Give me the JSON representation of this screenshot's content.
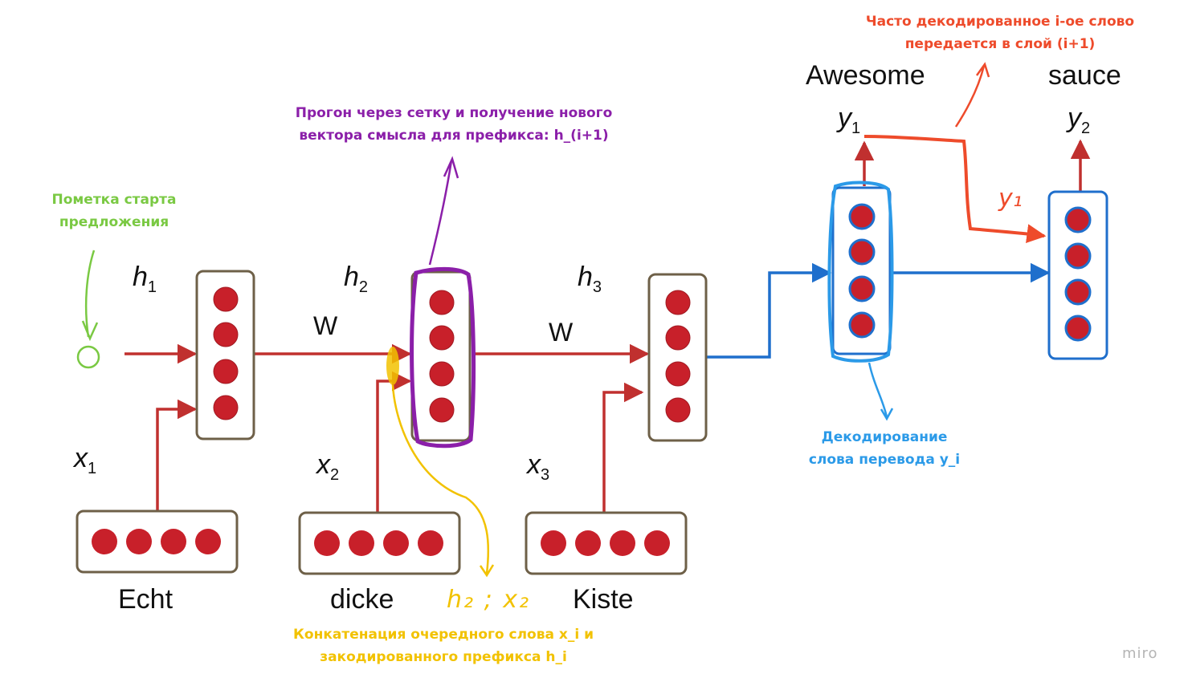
{
  "words": {
    "echt": "Echt",
    "dicke": "dicke",
    "kiste": "Kiste",
    "awesome": "Awesome",
    "sauce": "sauce"
  },
  "labels": {
    "h1": "h",
    "h1_sub": "1",
    "h2": "h",
    "h2_sub": "2",
    "h3": "h",
    "h3_sub": "3",
    "x1": "x",
    "x1_sub": "1",
    "x2": "x",
    "x2_sub": "2",
    "x3": "x",
    "x3_sub": "3",
    "y1": "y",
    "y1_sub": "1",
    "y2": "y",
    "y2_sub": "2",
    "w1": "W",
    "w2": "W"
  },
  "handwriting": {
    "concat": "h₂ ; x₂",
    "y1": "y₁"
  },
  "annotations": {
    "start": [
      "Пометка старта",
      "предложения"
    ],
    "forward": [
      "Прогон через сетку и получение нового",
      "вектора смысла для префикса: h_(i+1)"
    ],
    "concat": [
      "Конкатенация очередного слова x_i и",
      "закодированного префикса h_i"
    ],
    "decode": [
      "Декодирование",
      "слова перевода y_i"
    ],
    "feed": [
      "Часто декодированное i-ое слово",
      "передается в слой (i+1)"
    ]
  },
  "colors": {
    "arrow_red": "#c0302f",
    "node_red": "#c8202a",
    "box_border": "#6e6048",
    "blue": "#1f6fcc",
    "green": "#7ac943",
    "purple": "#8b1fa9",
    "yellow": "#f2c200",
    "orange": "#ee4b2b",
    "light_blue": "#2b9ae8"
  },
  "watermark": "miro"
}
